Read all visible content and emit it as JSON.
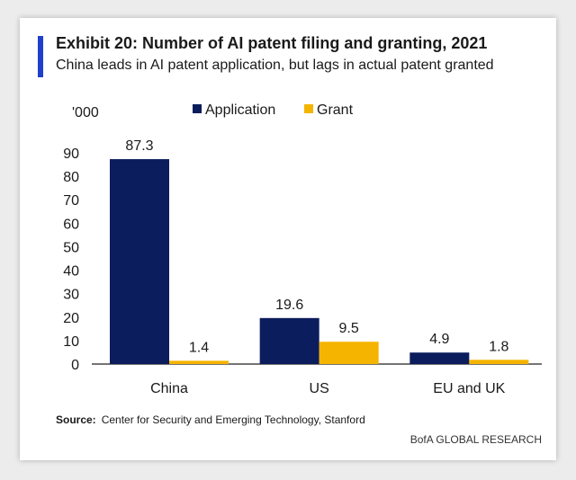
{
  "header": {
    "title": "Exhibit 20: Number of AI patent filing and granting, 2021",
    "subtitle": "China leads in AI patent application, but lags in actual patent granted"
  },
  "footer": {
    "source_label": "Source:",
    "source_text": "Center for Security and Emerging Technology,  Stanford",
    "brand": "BofA GLOBAL RESEARCH"
  },
  "colors": {
    "accent": "#1f3fcc",
    "application": "#0b1d5c",
    "grant": "#f5b400"
  },
  "chart_data": {
    "type": "bar",
    "title": "Exhibit 20: Number of AI patent filing and granting, 2021",
    "subtitle": "China leads in AI patent application, but lags in actual patent granted",
    "unit_label": "'000",
    "categories": [
      "China",
      "US",
      "EU and UK"
    ],
    "series": [
      {
        "name": "Application",
        "color": "#0b1d5c",
        "values": [
          87.3,
          19.6,
          4.9
        ],
        "labels": [
          "87.3",
          "19.6",
          "4.9"
        ]
      },
      {
        "name": "Grant",
        "color": "#f5b400",
        "values": [
          1.4,
          9.5,
          1.8
        ],
        "labels": [
          "1.4",
          "9.5",
          "1.8"
        ]
      }
    ],
    "ylim": [
      0,
      90
    ],
    "yticks": [
      "0",
      "10",
      "20",
      "30",
      "40",
      "50",
      "60",
      "70",
      "80",
      "90"
    ],
    "grid": false,
    "legend_position": "top"
  }
}
